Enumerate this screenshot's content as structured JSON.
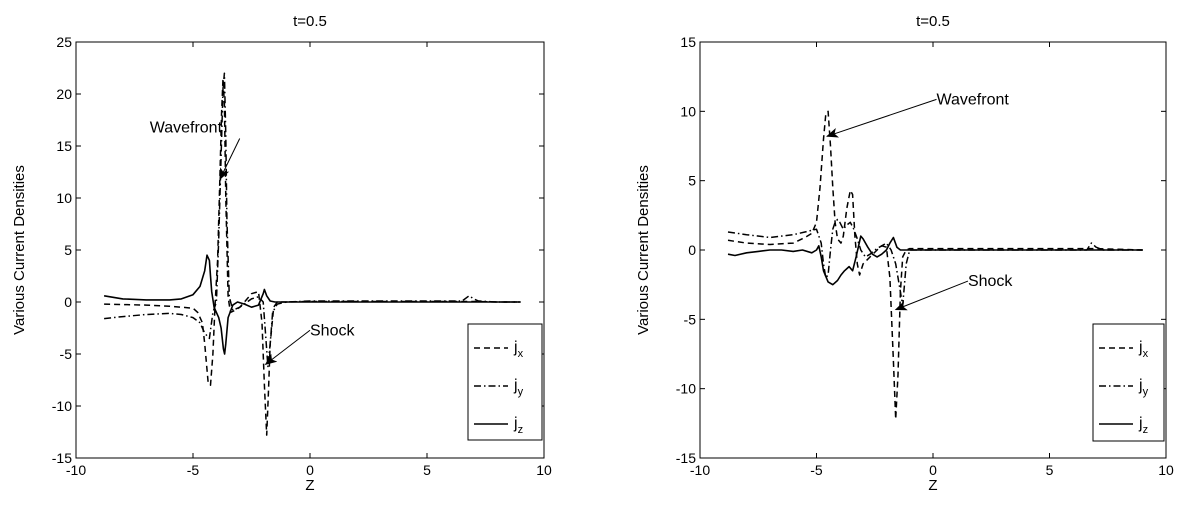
{
  "chart_data": [
    {
      "type": "line",
      "title": "t=0.5",
      "xlabel": "Z",
      "ylabel": "Various Current Densities",
      "xlim": [
        -10,
        10
      ],
      "ylim": [
        -15,
        25
      ],
      "xticks": [
        -10,
        -5,
        0,
        5,
        10
      ],
      "yticks": [
        -15,
        -10,
        -5,
        0,
        5,
        10,
        15,
        20,
        25
      ],
      "grid": false,
      "legend_position": "bottom-right",
      "series": [
        {
          "name": "j",
          "subscript": "x",
          "dash": "dashed",
          "x": [
            -8.8,
            -7,
            -6,
            -5,
            -4.8,
            -4.6,
            -4.5,
            -4.35,
            -4.25,
            -4.15,
            -4.05,
            -3.95,
            -3.85,
            -3.78,
            -3.72,
            -3.66,
            -3.6,
            -3.5,
            -3.4,
            -3.2,
            -3.0,
            -2.8,
            -2.5,
            -2.2,
            -2.05,
            -1.95,
            -1.85,
            -1.78,
            -1.7,
            -1.55,
            -1.4,
            -1.2,
            -1.0,
            0,
            1,
            2,
            3,
            4,
            5,
            6,
            7,
            8,
            9
          ],
          "y": [
            -0.2,
            -0.3,
            -0.4,
            -0.6,
            -1.0,
            -2.0,
            -4.0,
            -7.8,
            -8.0,
            -5.0,
            0.0,
            4.0,
            12.0,
            18.0,
            21.5,
            19.0,
            10.0,
            0.5,
            -1.0,
            -0.8,
            -0.5,
            0.0,
            0.8,
            1.0,
            -2.0,
            -8.0,
            -12.8,
            -9.0,
            -4.0,
            -0.5,
            0.0,
            0.0,
            0.0,
            0.05,
            0.05,
            0.05,
            0.05,
            0.05,
            0.05,
            0.05,
            0.05,
            0.0,
            0.0
          ]
        },
        {
          "name": "j",
          "subscript": "y",
          "dash": "dashdot",
          "x": [
            -8.8,
            -8,
            -7,
            -6,
            -5.5,
            -5,
            -4.7,
            -4.5,
            -4.3,
            -4.15,
            -4.0,
            -3.9,
            -3.8,
            -3.72,
            -3.66,
            -3.6,
            -3.55,
            -3.45,
            -3.3,
            -3.0,
            -2.5,
            -2.2,
            -2.0,
            -1.9,
            -1.8,
            -1.7,
            -1.6,
            -1.4,
            -1.0,
            0,
            1,
            3,
            5,
            6.5,
            6.8,
            7.0,
            7.2,
            8,
            9
          ],
          "y": [
            -1.6,
            -1.4,
            -1.2,
            -1.1,
            -1.2,
            -1.5,
            -2.0,
            -3.0,
            -3.5,
            -1.0,
            0.0,
            6.0,
            14.0,
            20.5,
            22.0,
            16.0,
            8.0,
            0.5,
            -0.8,
            -0.5,
            0.3,
            0.5,
            0.0,
            -3.0,
            -6.2,
            -4.0,
            -1.0,
            -0.2,
            0.0,
            0.1,
            0.1,
            0.1,
            0.1,
            0.1,
            0.6,
            0.3,
            0.1,
            0.0,
            0.0
          ]
        },
        {
          "name": "j",
          "subscript": "z",
          "dash": "solid",
          "x": [
            -8.8,
            -8,
            -7,
            -6,
            -5.5,
            -5.0,
            -4.7,
            -4.5,
            -4.4,
            -4.3,
            -4.25,
            -4.2,
            -4.1,
            -4.0,
            -3.9,
            -3.8,
            -3.7,
            -3.65,
            -3.6,
            -3.5,
            -3.3,
            -3.1,
            -2.8,
            -2.5,
            -2.2,
            -2.0,
            -1.95,
            -1.85,
            -1.7,
            -1.5,
            -1.0,
            0,
            2,
            5,
            8,
            9
          ],
          "y": [
            0.6,
            0.3,
            0.2,
            0.2,
            0.3,
            0.7,
            1.5,
            3.0,
            4.5,
            4.0,
            2.5,
            1.0,
            -0.5,
            -1.0,
            -1.5,
            -2.5,
            -4.5,
            -5.0,
            -4.0,
            -1.5,
            -0.3,
            0.0,
            -0.2,
            -0.5,
            -0.3,
            0.8,
            1.2,
            0.6,
            0.1,
            0.0,
            0.0,
            0.0,
            0.0,
            0.0,
            0.0,
            0.0
          ]
        }
      ],
      "annotations": [
        {
          "text": "Wavefront",
          "x": -6.85,
          "y": 16.3,
          "target_x": -3.85,
          "target_y": 11.8
        },
        {
          "text": "Shock",
          "x": 0.0,
          "y": -3.2,
          "target_x": -1.9,
          "target_y": -6.0
        }
      ]
    },
    {
      "type": "line",
      "title": "t=0.5",
      "xlabel": "Z",
      "ylabel": "Various Current Densities",
      "xlim": [
        -10,
        10
      ],
      "ylim": [
        -15,
        15
      ],
      "xticks": [
        -10,
        -5,
        0,
        5,
        10
      ],
      "yticks": [
        -15,
        -10,
        -5,
        0,
        5,
        10,
        15
      ],
      "grid": false,
      "legend_position": "bottom-right",
      "series": [
        {
          "name": "j",
          "subscript": "x",
          "dash": "dashed",
          "x": [
            -8.8,
            -8,
            -7,
            -6,
            -5.5,
            -5.2,
            -5.0,
            -4.85,
            -4.7,
            -4.6,
            -4.5,
            -4.4,
            -4.3,
            -4.2,
            -4.1,
            -3.95,
            -3.85,
            -3.7,
            -3.55,
            -3.45,
            -3.35,
            -3.25,
            -3.15,
            -3.0,
            -2.7,
            -2.4,
            -2.2,
            -2.0,
            -1.85,
            -1.7,
            -1.6,
            -1.5,
            -1.4,
            -1.3,
            -1.15,
            -1.0,
            0,
            2,
            5,
            7,
            9
          ],
          "y": [
            0.7,
            0.5,
            0.4,
            0.5,
            0.9,
            1.2,
            2.0,
            4.5,
            8.0,
            9.8,
            10.0,
            7.5,
            4.5,
            2.0,
            0.8,
            0.5,
            1.0,
            3.0,
            4.3,
            4.0,
            1.0,
            -1.0,
            -1.8,
            -1.0,
            -0.5,
            0.0,
            0.3,
            0.2,
            -2.0,
            -8.0,
            -12.2,
            -9.0,
            -3.0,
            -0.5,
            0.0,
            0.1,
            0.1,
            0.1,
            0.1,
            0.1,
            0.0
          ]
        },
        {
          "name": "j",
          "subscript": "y",
          "dash": "dashdot",
          "x": [
            -8.8,
            -8,
            -7,
            -6,
            -5.5,
            -5.0,
            -4.8,
            -4.7,
            -4.6,
            -4.5,
            -4.4,
            -4.3,
            -4.2,
            -4.1,
            -4.0,
            -3.85,
            -3.7,
            -3.55,
            -3.4,
            -3.25,
            -3.1,
            -2.9,
            -2.7,
            -2.5,
            -2.3,
            -2.0,
            -1.8,
            -1.6,
            -1.45,
            -1.3,
            -1.15,
            -1.0,
            0,
            2,
            5,
            6.6,
            6.8,
            7.0,
            7.3,
            9
          ],
          "y": [
            1.3,
            1.1,
            0.9,
            1.1,
            1.3,
            1.5,
            0.5,
            -1.0,
            -2.0,
            -1.8,
            0.0,
            1.5,
            2.0,
            2.2,
            2.0,
            1.5,
            1.8,
            2.0,
            1.5,
            0.8,
            0.0,
            -0.5,
            -0.3,
            0.0,
            0.2,
            0.5,
            0.0,
            -1.0,
            -2.5,
            -4.0,
            -1.0,
            0.0,
            0.0,
            0.0,
            0.0,
            0.0,
            0.5,
            0.2,
            0.0,
            0.0
          ]
        },
        {
          "name": "j",
          "subscript": "z",
          "dash": "solid",
          "x": [
            -8.8,
            -8.5,
            -8,
            -7.5,
            -7,
            -6.5,
            -6,
            -5.6,
            -5.2,
            -5.0,
            -4.9,
            -4.8,
            -4.7,
            -4.5,
            -4.3,
            -4.1,
            -3.95,
            -3.8,
            -3.6,
            -3.45,
            -3.3,
            -3.1,
            -3.0,
            -2.8,
            -2.6,
            -2.4,
            -2.2,
            -2.0,
            -1.85,
            -1.7,
            -1.55,
            -1.4,
            -1.2,
            -1.0,
            0,
            2,
            5,
            8,
            9
          ],
          "y": [
            -0.3,
            -0.4,
            -0.2,
            -0.1,
            0.0,
            0.0,
            -0.1,
            0.0,
            -0.2,
            0.0,
            0.3,
            -0.5,
            -1.5,
            -2.3,
            -2.5,
            -2.2,
            -1.8,
            -1.5,
            -1.2,
            -1.5,
            -0.5,
            1.0,
            0.8,
            0.2,
            -0.3,
            -0.5,
            -0.3,
            0.0,
            0.5,
            0.9,
            0.2,
            0.0,
            0.0,
            0.0,
            0.0,
            0.0,
            0.0,
            0.0,
            0.0
          ]
        }
      ],
      "annotations": [
        {
          "text": "Wavefront",
          "x": 0.15,
          "y": 10.5,
          "target_x": -4.55,
          "target_y": 8.2
        },
        {
          "text": "Shock",
          "x": 1.5,
          "y": -2.6,
          "target_x": -1.6,
          "target_y": -4.3
        }
      ]
    }
  ]
}
